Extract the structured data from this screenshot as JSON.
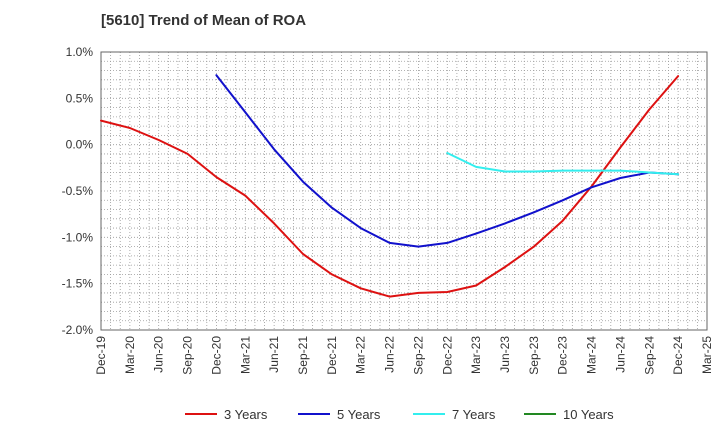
{
  "chart_data": {
    "type": "line",
    "title": "[5610]  Trend of Mean of ROA",
    "xlabel": "",
    "ylabel": "",
    "x_tick_labels": [
      "Dec-19",
      "Mar-20",
      "Jun-20",
      "Sep-20",
      "Dec-20",
      "Mar-21",
      "Jun-21",
      "Sep-21",
      "Dec-21",
      "Mar-22",
      "Jun-22",
      "Sep-22",
      "Dec-22",
      "Mar-23",
      "Jun-23",
      "Sep-23",
      "Dec-23",
      "Mar-24",
      "Jun-24",
      "Sep-24",
      "Dec-24",
      "Mar-25"
    ],
    "y_tick_labels": [
      "1.0%",
      "0.5%",
      "0.0%",
      "-0.5%",
      "-1.0%",
      "-1.5%",
      "-2.0%"
    ],
    "ylim": [
      -2.0,
      1.0
    ],
    "grid": true,
    "legend_position": "bottom",
    "series": [
      {
        "name": "3 Years",
        "color": "#dd1111",
        "start_index": 0,
        "values": [
          0.26,
          0.18,
          0.05,
          -0.1,
          -0.35,
          -0.55,
          -0.85,
          -1.18,
          -1.4,
          -1.55,
          -1.64,
          -1.6,
          -1.59,
          -1.52,
          -1.32,
          -1.1,
          -0.82,
          -0.45,
          -0.03,
          0.38,
          0.74
        ]
      },
      {
        "name": "5 Years",
        "color": "#1111cc",
        "start_index": 4,
        "values": [
          0.75,
          0.35,
          -0.05,
          -0.4,
          -0.68,
          -0.9,
          -1.06,
          -1.1,
          -1.06,
          -0.96,
          -0.85,
          -0.73,
          -0.6,
          -0.46,
          -0.36,
          -0.3,
          -0.32
        ]
      },
      {
        "name": "7 Years",
        "color": "#33eeee",
        "start_index": 12,
        "values": [
          -0.09,
          -0.24,
          -0.29,
          -0.29,
          -0.28,
          -0.28,
          -0.28,
          -0.3,
          -0.32
        ]
      },
      {
        "name": "10 Years",
        "color": "#228822",
        "start_index": 21,
        "values": []
      }
    ]
  }
}
